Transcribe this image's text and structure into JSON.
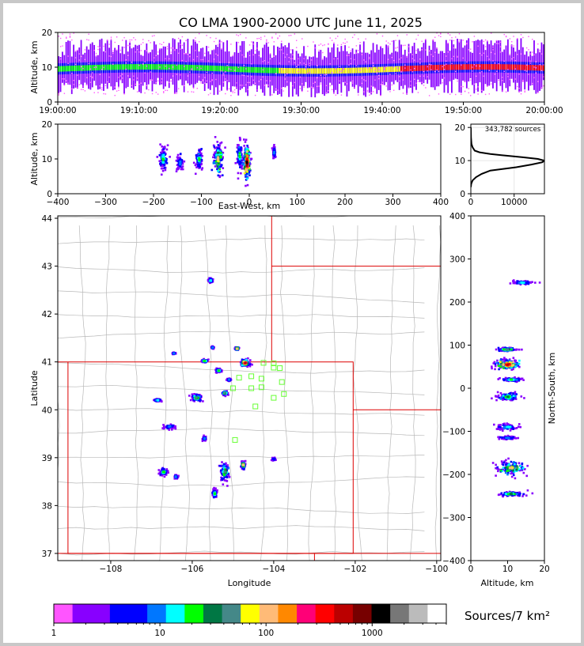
{
  "chart_data": [
    {
      "type": "scatter",
      "panel": "time-altitude",
      "title": "CO LMA 1900-2000 UTC June 11, 2025",
      "xlabel": "",
      "ylabel": "Altitude, km",
      "x_ticks": [
        "19:00:00",
        "19:10:00",
        "19:20:00",
        "19:30:00",
        "19:40:00",
        "19:50:00",
        "20:00:00"
      ],
      "y_ticks": [
        0,
        10,
        20
      ],
      "ylim": [
        0,
        20
      ],
      "band": {
        "core_altitude_km": 9.5,
        "spread_km": 3.5
      }
    },
    {
      "type": "scatter",
      "panel": "east-west-altitude",
      "xlabel": "East-West, km",
      "ylabel": "Altitude, km",
      "xlim": [
        -400,
        400
      ],
      "ylim": [
        0,
        20
      ],
      "x_ticks": [
        -400,
        -300,
        -200,
        -100,
        0,
        100,
        200,
        300,
        400
      ],
      "y_ticks": [
        0,
        10,
        20
      ],
      "clusters": [
        {
          "x": -180,
          "alt": 10,
          "w": 18,
          "h": 7,
          "level": 6
        },
        {
          "x": -145,
          "alt": 9,
          "w": 12,
          "h": 5,
          "level": 4
        },
        {
          "x": -105,
          "alt": 10,
          "w": 14,
          "h": 6,
          "level": 6
        },
        {
          "x": -65,
          "alt": 10,
          "w": 22,
          "h": 9,
          "level": 10
        },
        {
          "x": -20,
          "alt": 11,
          "w": 10,
          "h": 8,
          "level": 6
        },
        {
          "x": -5,
          "alt": 9,
          "w": 14,
          "h": 10,
          "level": 16
        },
        {
          "x": 52,
          "alt": 12,
          "w": 5,
          "h": 3,
          "level": 4
        }
      ]
    },
    {
      "type": "line",
      "panel": "altitude-histogram",
      "annotation": "343,782 sources",
      "xlim": [
        0,
        17000
      ],
      "ylim": [
        0,
        21
      ],
      "x_ticks": [
        0,
        10000
      ],
      "y_ticks": [
        0,
        10,
        20
      ],
      "x": [
        0,
        100,
        400,
        1200,
        2500,
        4500,
        7500,
        10500,
        14000,
        16500,
        17000,
        15500,
        12000,
        8000,
        4500,
        2000,
        900,
        400,
        150,
        40,
        0
      ],
      "y": [
        2,
        3,
        4,
        5,
        6,
        7,
        7.5,
        8,
        8.8,
        9.5,
        10,
        10.5,
        11,
        11.5,
        12,
        12.5,
        13,
        14,
        15,
        17,
        20
      ]
    },
    {
      "type": "scatter",
      "panel": "plan-view",
      "xlabel": "Longitude",
      "ylabel": "Latitude",
      "xlim": [
        -109.3,
        -99.9
      ],
      "ylim": [
        36.85,
        44.05
      ],
      "x_ticks": [
        -108,
        -106,
        -104,
        -102,
        -100
      ],
      "x_tick_labels": [
        "−108",
        "−106",
        "−104",
        "−102",
        "−100"
      ],
      "y_ticks": [
        37,
        38,
        39,
        40,
        41,
        42,
        43,
        44
      ],
      "clusters": [
        {
          "lon": -105.55,
          "lat": 42.7,
          "w": 0.1,
          "h": 0.08,
          "level": 5
        },
        {
          "lon": -105.5,
          "lat": 41.3,
          "w": 0.05,
          "h": 0.04,
          "level": 4
        },
        {
          "lon": -104.9,
          "lat": 41.28,
          "w": 0.08,
          "h": 0.05,
          "level": 10
        },
        {
          "lon": -106.45,
          "lat": 41.18,
          "w": 0.08,
          "h": 0.03,
          "level": 4
        },
        {
          "lon": -105.7,
          "lat": 41.02,
          "w": 0.18,
          "h": 0.06,
          "level": 6
        },
        {
          "lon": -104.7,
          "lat": 40.98,
          "w": 0.2,
          "h": 0.12,
          "level": 14
        },
        {
          "lon": -105.35,
          "lat": 40.82,
          "w": 0.12,
          "h": 0.06,
          "level": 6
        },
        {
          "lon": -105.1,
          "lat": 40.63,
          "w": 0.08,
          "h": 0.05,
          "level": 4
        },
        {
          "lon": -105.2,
          "lat": 40.35,
          "w": 0.12,
          "h": 0.08,
          "level": 8
        },
        {
          "lon": -105.9,
          "lat": 40.25,
          "w": 0.25,
          "h": 0.12,
          "level": 8
        },
        {
          "lon": -106.85,
          "lat": 40.2,
          "w": 0.15,
          "h": 0.05,
          "level": 5
        },
        {
          "lon": -106.55,
          "lat": 39.65,
          "w": 0.3,
          "h": 0.08,
          "level": 4
        },
        {
          "lon": -105.7,
          "lat": 39.4,
          "w": 0.08,
          "h": 0.08,
          "level": 4
        },
        {
          "lon": -106.7,
          "lat": 38.7,
          "w": 0.18,
          "h": 0.12,
          "level": 6
        },
        {
          "lon": -106.4,
          "lat": 38.6,
          "w": 0.08,
          "h": 0.08,
          "level": 4
        },
        {
          "lon": -105.2,
          "lat": 38.7,
          "w": 0.22,
          "h": 0.35,
          "level": 8
        },
        {
          "lon": -104.75,
          "lat": 38.85,
          "w": 0.1,
          "h": 0.15,
          "level": 10
        },
        {
          "lon": -105.45,
          "lat": 38.25,
          "w": 0.1,
          "h": 0.18,
          "level": 6
        },
        {
          "lon": -104.0,
          "lat": 38.97,
          "w": 0.08,
          "h": 0.05,
          "level": 3
        }
      ],
      "stations": [
        [
          -104.85,
          40.67
        ],
        [
          -104.55,
          40.7
        ],
        [
          -104.3,
          40.65
        ],
        [
          -104.0,
          40.88
        ],
        [
          -103.85,
          40.87
        ],
        [
          -104.25,
          40.98
        ],
        [
          -104.0,
          40.97
        ],
        [
          -103.8,
          40.58
        ],
        [
          -104.55,
          40.45
        ],
        [
          -104.3,
          40.47
        ],
        [
          -105.0,
          40.45
        ],
        [
          -103.75,
          40.33
        ],
        [
          -104.0,
          40.25
        ],
        [
          -104.45,
          40.07
        ],
        [
          -104.95,
          39.37
        ]
      ]
    },
    {
      "type": "scatter",
      "panel": "altitude-north-south",
      "xlabel": "Altitude, km",
      "ylabel": "North-South, km",
      "xlim": [
        0,
        20
      ],
      "ylim": [
        -400,
        400
      ],
      "x_ticks": [
        0,
        10,
        20
      ],
      "y_ticks": [
        -400,
        -300,
        -200,
        -100,
        0,
        100,
        200,
        300,
        400
      ],
      "clusters": [
        {
          "alt": 14,
          "ns": 245,
          "w": 6,
          "h": 10,
          "level": 5
        },
        {
          "alt": 10,
          "ns": 90,
          "w": 5,
          "h": 8,
          "level": 8
        },
        {
          "alt": 10,
          "ns": 55,
          "w": 7,
          "h": 22,
          "level": 14
        },
        {
          "alt": 11,
          "ns": 20,
          "w": 5,
          "h": 8,
          "level": 6
        },
        {
          "alt": 10,
          "ns": -20,
          "w": 7,
          "h": 18,
          "level": 7
        },
        {
          "alt": 10,
          "ns": -90,
          "w": 6,
          "h": 14,
          "level": 5
        },
        {
          "alt": 10,
          "ns": -115,
          "w": 6,
          "h": 8,
          "level": 4
        },
        {
          "alt": 11,
          "ns": -185,
          "w": 8,
          "h": 30,
          "level": 10
        },
        {
          "alt": 11,
          "ns": -245,
          "w": 7,
          "h": 10,
          "level": 7
        }
      ]
    }
  ],
  "colorbar": {
    "label": "Sources/7 km²",
    "tick_labels": [
      "1",
      "10",
      "100",
      "1000"
    ],
    "colors": [
      "#ff55ff",
      "#8800ff",
      "#8800ff",
      "#0000ff",
      "#0000ff",
      "#0077ff",
      "#00ffff",
      "#00ff00",
      "#007744",
      "#448888",
      "#ffff00",
      "#ffbb77",
      "#ff8800",
      "#ff0077",
      "#ff0000",
      "#bb0000",
      "#770000",
      "#000000",
      "#777777",
      "#bbbbbb",
      "#ffffff"
    ]
  }
}
